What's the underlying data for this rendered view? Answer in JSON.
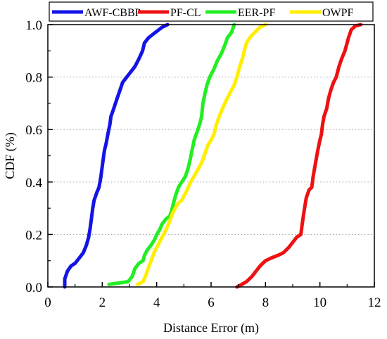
{
  "chart_data": {
    "type": "line",
    "xlabel": "Distance Error (m)",
    "ylabel": "CDF (%)",
    "xlim": [
      0,
      12
    ],
    "ylim": [
      0,
      1.0
    ],
    "xticks": [
      "0",
      "2",
      "4",
      "6",
      "8",
      "10",
      "12"
    ],
    "yticks": [
      "0.0",
      "0.2",
      "0.4",
      "0.6",
      "0.8",
      "1.0"
    ],
    "grid": "dotted horizontal",
    "legend_position": "top",
    "series": [
      {
        "name": "AWF-CBBP",
        "color": "#1414e6",
        "points": [
          [
            0.62,
            0.0
          ],
          [
            0.62,
            0.03
          ],
          [
            0.72,
            0.06
          ],
          [
            0.85,
            0.08
          ],
          [
            1.0,
            0.09
          ],
          [
            1.15,
            0.11
          ],
          [
            1.3,
            0.13
          ],
          [
            1.42,
            0.16
          ],
          [
            1.5,
            0.19
          ],
          [
            1.55,
            0.22
          ],
          [
            1.6,
            0.26
          ],
          [
            1.65,
            0.3
          ],
          [
            1.7,
            0.33
          ],
          [
            1.8,
            0.36
          ],
          [
            1.88,
            0.38
          ],
          [
            1.95,
            0.42
          ],
          [
            2.0,
            0.46
          ],
          [
            2.08,
            0.52
          ],
          [
            2.15,
            0.55
          ],
          [
            2.2,
            0.58
          ],
          [
            2.28,
            0.62
          ],
          [
            2.32,
            0.65
          ],
          [
            2.42,
            0.68
          ],
          [
            2.55,
            0.72
          ],
          [
            2.65,
            0.75
          ],
          [
            2.75,
            0.78
          ],
          [
            2.9,
            0.8
          ],
          [
            3.05,
            0.82
          ],
          [
            3.2,
            0.84
          ],
          [
            3.35,
            0.87
          ],
          [
            3.48,
            0.9
          ],
          [
            3.55,
            0.93
          ],
          [
            3.7,
            0.95
          ],
          [
            3.95,
            0.97
          ],
          [
            4.2,
            0.99
          ],
          [
            4.4,
            1.0
          ]
        ]
      },
      {
        "name": "PF-CL",
        "color": "#ee1111",
        "points": [
          [
            6.95,
            0.0
          ],
          [
            7.05,
            0.005
          ],
          [
            7.3,
            0.02
          ],
          [
            7.5,
            0.04
          ],
          [
            7.65,
            0.06
          ],
          [
            7.8,
            0.08
          ],
          [
            8.0,
            0.1
          ],
          [
            8.2,
            0.11
          ],
          [
            8.45,
            0.12
          ],
          [
            8.65,
            0.13
          ],
          [
            8.85,
            0.15
          ],
          [
            9.0,
            0.17
          ],
          [
            9.15,
            0.19
          ],
          [
            9.3,
            0.2
          ],
          [
            9.35,
            0.24
          ],
          [
            9.42,
            0.29
          ],
          [
            9.5,
            0.34
          ],
          [
            9.6,
            0.37
          ],
          [
            9.7,
            0.38
          ],
          [
            9.75,
            0.42
          ],
          [
            9.8,
            0.45
          ],
          [
            9.85,
            0.48
          ],
          [
            9.92,
            0.52
          ],
          [
            10.0,
            0.56
          ],
          [
            10.05,
            0.58
          ],
          [
            10.1,
            0.62
          ],
          [
            10.15,
            0.65
          ],
          [
            10.25,
            0.68
          ],
          [
            10.32,
            0.72
          ],
          [
            10.4,
            0.75
          ],
          [
            10.5,
            0.78
          ],
          [
            10.6,
            0.8
          ],
          [
            10.7,
            0.84
          ],
          [
            10.8,
            0.87
          ],
          [
            10.92,
            0.9
          ],
          [
            11.0,
            0.93
          ],
          [
            11.05,
            0.95
          ],
          [
            11.15,
            0.98
          ],
          [
            11.3,
            0.995
          ],
          [
            11.5,
            1.0
          ]
        ]
      },
      {
        "name": "EER-PF",
        "color": "#22ee22",
        "points": [
          [
            2.25,
            0.01
          ],
          [
            2.6,
            0.015
          ],
          [
            2.95,
            0.02
          ],
          [
            3.1,
            0.04
          ],
          [
            3.2,
            0.07
          ],
          [
            3.35,
            0.09
          ],
          [
            3.5,
            0.1
          ],
          [
            3.55,
            0.12
          ],
          [
            3.65,
            0.14
          ],
          [
            3.8,
            0.16
          ],
          [
            3.92,
            0.18
          ],
          [
            4.0,
            0.2
          ],
          [
            4.12,
            0.22
          ],
          [
            4.2,
            0.24
          ],
          [
            4.35,
            0.26
          ],
          [
            4.48,
            0.27
          ],
          [
            4.55,
            0.29
          ],
          [
            4.62,
            0.32
          ],
          [
            4.7,
            0.35
          ],
          [
            4.8,
            0.38
          ],
          [
            4.92,
            0.4
          ],
          [
            5.05,
            0.42
          ],
          [
            5.15,
            0.45
          ],
          [
            5.22,
            0.48
          ],
          [
            5.3,
            0.52
          ],
          [
            5.38,
            0.56
          ],
          [
            5.48,
            0.59
          ],
          [
            5.58,
            0.62
          ],
          [
            5.65,
            0.65
          ],
          [
            5.7,
            0.7
          ],
          [
            5.78,
            0.74
          ],
          [
            5.85,
            0.77
          ],
          [
            5.95,
            0.8
          ],
          [
            6.1,
            0.83
          ],
          [
            6.22,
            0.86
          ],
          [
            6.38,
            0.89
          ],
          [
            6.5,
            0.92
          ],
          [
            6.6,
            0.95
          ],
          [
            6.75,
            0.97
          ],
          [
            6.85,
            1.0
          ]
        ]
      },
      {
        "name": "OWPF",
        "color": "#ffee00",
        "points": [
          [
            3.3,
            0.01
          ],
          [
            3.5,
            0.02
          ],
          [
            3.62,
            0.05
          ],
          [
            3.72,
            0.08
          ],
          [
            3.8,
            0.1
          ],
          [
            3.9,
            0.13
          ],
          [
            4.05,
            0.16
          ],
          [
            4.2,
            0.19
          ],
          [
            4.35,
            0.22
          ],
          [
            4.48,
            0.25
          ],
          [
            4.58,
            0.28
          ],
          [
            4.68,
            0.3
          ],
          [
            4.8,
            0.32
          ],
          [
            4.92,
            0.33
          ],
          [
            5.02,
            0.35
          ],
          [
            5.12,
            0.37
          ],
          [
            5.25,
            0.4
          ],
          [
            5.42,
            0.43
          ],
          [
            5.58,
            0.46
          ],
          [
            5.68,
            0.48
          ],
          [
            5.78,
            0.51
          ],
          [
            5.88,
            0.54
          ],
          [
            6.0,
            0.56
          ],
          [
            6.1,
            0.58
          ],
          [
            6.2,
            0.62
          ],
          [
            6.3,
            0.65
          ],
          [
            6.42,
            0.68
          ],
          [
            6.55,
            0.71
          ],
          [
            6.7,
            0.74
          ],
          [
            6.85,
            0.77
          ],
          [
            6.95,
            0.8
          ],
          [
            7.05,
            0.84
          ],
          [
            7.15,
            0.87
          ],
          [
            7.22,
            0.9
          ],
          [
            7.3,
            0.93
          ],
          [
            7.42,
            0.95
          ],
          [
            7.6,
            0.97
          ],
          [
            7.8,
            0.99
          ],
          [
            8.0,
            1.0
          ]
        ]
      }
    ]
  }
}
